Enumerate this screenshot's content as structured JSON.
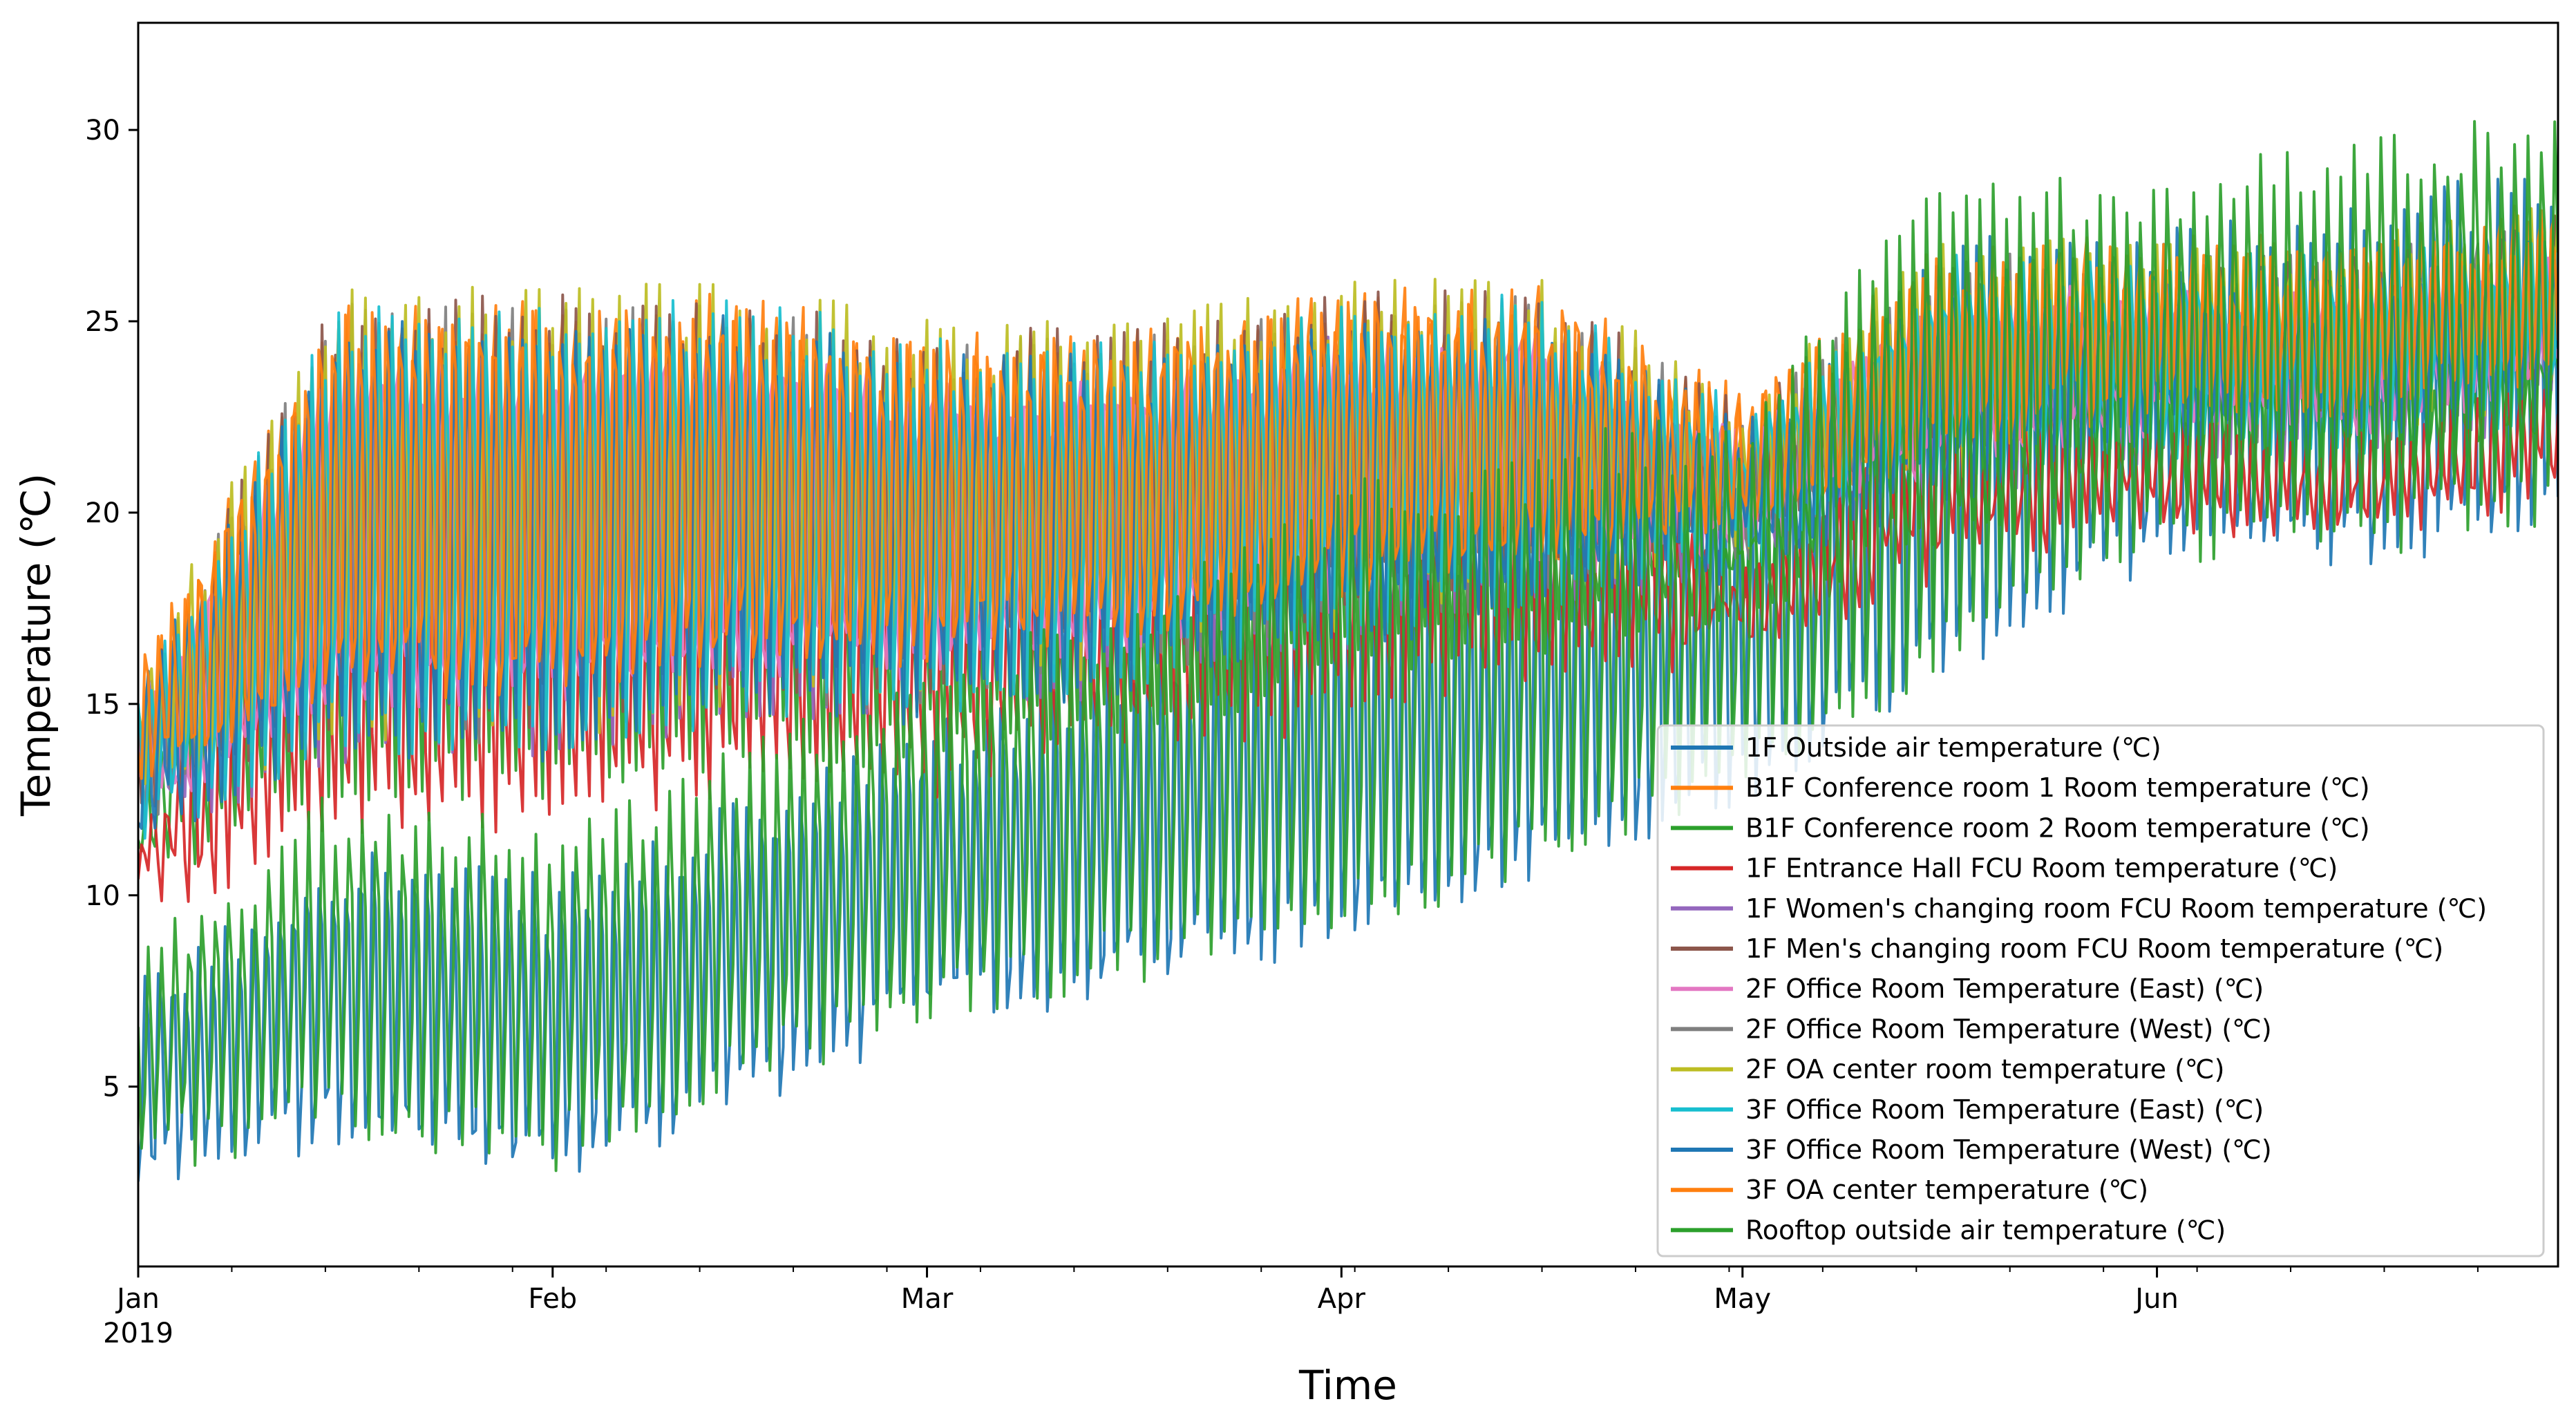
{
  "chart_data": {
    "type": "line",
    "title": "",
    "xlabel": "Time",
    "ylabel": "Temperature (℃)",
    "x_range": [
      "2019-01-01",
      "2019-06-30"
    ],
    "ylim": [
      0.3,
      32.8
    ],
    "grid": false,
    "legend_position": "lower-right",
    "x_ticks": [
      {
        "label": "Jan",
        "sublabel": "2019",
        "day": 0
      },
      {
        "label": "Feb",
        "sublabel": "",
        "day": 31
      },
      {
        "label": "Mar",
        "sublabel": "",
        "day": 59
      },
      {
        "label": "Apr",
        "sublabel": "",
        "day": 90
      },
      {
        "label": "May",
        "sublabel": "",
        "day": 120
      },
      {
        "label": "Jun",
        "sublabel": "",
        "day": 151
      }
    ],
    "x_max_day": 181,
    "y_ticks": [
      5,
      10,
      15,
      20,
      25,
      30
    ],
    "series_summary": {
      "description": "Hourly traces; indoor sensors oscillate ~14-26 ℃ Jan-Apr, converge ~22-26 ℃ by May-Jun; outside-air traces rise from ~2-12 ℃ in Jan to ~18-31 ℃ in Jun",
      "sample_days": [
        0,
        15,
        31,
        45,
        59,
        75,
        90,
        105,
        120,
        135,
        151,
        166,
        181
      ],
      "indoor_high_samples": [
        15,
        25,
        25,
        25,
        24,
        24,
        25,
        25,
        22,
        26,
        26,
        26,
        27
      ],
      "indoor_low_samples": [
        12,
        14,
        14,
        15,
        15,
        16,
        17,
        18,
        19,
        21,
        22,
        22,
        23
      ],
      "outdoor_high_samples": [
        8,
        12,
        11,
        13,
        15,
        17,
        20,
        21,
        22,
        28,
        28,
        29,
        30
      ],
      "outdoor_low_samples": [
        3,
        4,
        3,
        5,
        7,
        8,
        9,
        11,
        13,
        16,
        19,
        19,
        20
      ]
    },
    "series": [
      {
        "name": "1F Outside air temperature (℃)",
        "color": "#1f77b4",
        "kind": "outdoor",
        "offset": -0.6
      },
      {
        "name": "B1F Conference room 1 Room temperature (℃)",
        "color": "#ff7f0e",
        "kind": "indoor_hot",
        "offset": 0.8
      },
      {
        "name": "B1F Conference room 2 Room temperature (℃)",
        "color": "#2ca02c",
        "kind": "indoor_cool",
        "offset": -1.0
      },
      {
        "name": "1F Entrance Hall FCU Room temperature (℃)",
        "color": "#d62728",
        "kind": "indoor_cool",
        "offset": -2.2
      },
      {
        "name": "1F Women's changing room FCU Room temperature (℃)",
        "color": "#9467bd",
        "kind": "indoor_mid",
        "offset": 0.0
      },
      {
        "name": "1F Men's changing room FCU Room temperature (℃)",
        "color": "#8c564b",
        "kind": "indoor_mid",
        "offset": 0.9
      },
      {
        "name": "2F Office Room Temperature (East) (℃)",
        "color": "#e377c2",
        "kind": "indoor_mid",
        "offset": 0.4
      },
      {
        "name": "2F Office Room Temperature (West) (℃)",
        "color": "#7f7f7f",
        "kind": "indoor_hot",
        "offset": 0.2
      },
      {
        "name": "2F OA center room temperature (℃)",
        "color": "#bcbd22",
        "kind": "indoor_hot",
        "offset": 0.5
      },
      {
        "name": "3F Office Room Temperature (East) (℃)",
        "color": "#17becf",
        "kind": "indoor_hot",
        "offset": 0.1
      },
      {
        "name": "3F Office Room Temperature (West) (℃)",
        "color": "#1f77b4",
        "kind": "indoor_hot",
        "offset": -0.2
      },
      {
        "name": "3F OA center temperature (℃)",
        "color": "#ff7f0e",
        "kind": "indoor_hot",
        "offset": 0.7
      },
      {
        "name": "Rooftop outside air temperature (℃)",
        "color": "#2ca02c",
        "kind": "outdoor",
        "offset": 0.3
      }
    ]
  }
}
